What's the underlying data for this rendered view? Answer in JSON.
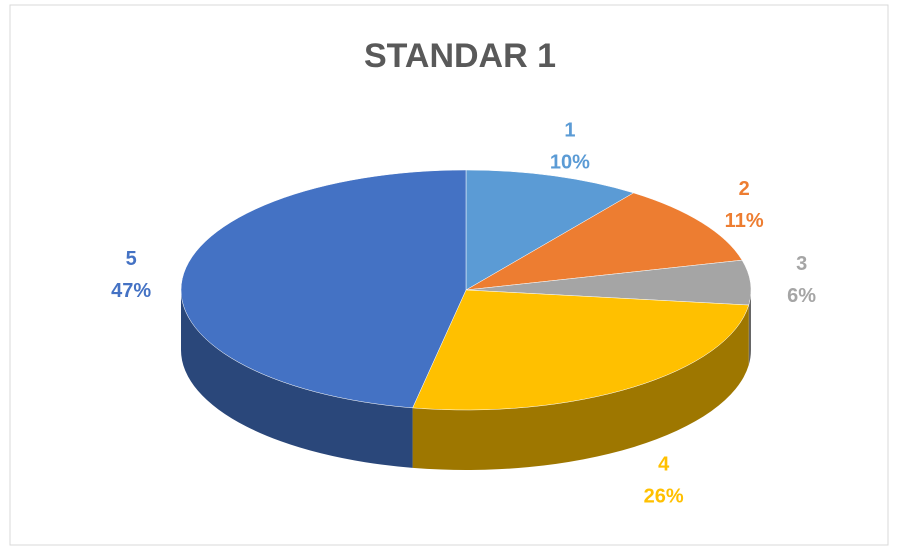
{
  "chart_data": {
    "type": "pie",
    "title": "STANDAR 1",
    "categories": [
      "1",
      "2",
      "3",
      "4",
      "5"
    ],
    "values": [
      10,
      11,
      6,
      26,
      47
    ],
    "value_labels": [
      "10%",
      "11%",
      "6%",
      "26%",
      "47%"
    ],
    "colors": [
      "#5b9bd5",
      "#ed7d31",
      "#a5a5a5",
      "#ffc000",
      "#4472c4"
    ]
  }
}
